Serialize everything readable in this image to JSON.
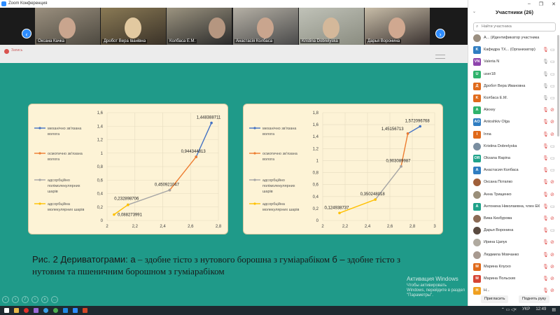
{
  "window": {
    "title": "Zoom Конференция"
  },
  "videos": [
    {
      "name": "Оксана Качка"
    },
    {
      "name": "Дробот Вера Іванівна"
    },
    {
      "name": "Колбаса Е.М."
    },
    {
      "name": "Анастасія Колбаса"
    },
    {
      "name": "Kristina Dobrelyska"
    },
    {
      "name": "Дарья Воронина"
    }
  ],
  "recording": {
    "label": "Запись"
  },
  "slide": {
    "caption_prefix": "Рис. 2  Дериватограми: а",
    "caption_a": " – здобне тісто з нутового борошна з гуміарабіком ",
    "caption_b_letter": "б –",
    "caption_b": " здобне тісто з нутовим та пшеничним борошном з гуміарабіком",
    "watermark_title": "Активация Windows",
    "watermark_sub": "Чтобы активировать Windows, перейдите в раздел \"Параметры\"."
  },
  "chart_data": [
    {
      "type": "line",
      "xlim": [
        2,
        2.8
      ],
      "ylim": [
        0,
        1.6
      ],
      "xticks": [
        "2",
        "2,2",
        "2,4",
        "2,6",
        "2,8"
      ],
      "yticks": [
        "0",
        "0,2",
        "0,4",
        "0,6",
        "0,8",
        "1",
        "1,2",
        "1,4",
        "1,6"
      ],
      "grid": true,
      "legend": "left",
      "series": [
        {
          "name": "механічно зв'язана волога",
          "color": "#4472c4",
          "points": [
            [
              2.64,
              0.944344813
            ],
            [
              2.75,
              1.448388711
            ]
          ]
        },
        {
          "name": "осмотично зв'язана волога",
          "color": "#ed7d31",
          "points": [
            [
              2.45,
              0.450921047
            ],
            [
              2.64,
              0.944344813
            ]
          ]
        },
        {
          "name": "адсорбційно полімолекулярних шарів",
          "color": "#a5a5a5",
          "points": [
            [
              2.15,
              0.232898706
            ],
            [
              2.45,
              0.450921047
            ]
          ]
        },
        {
          "name": "адсорбційна молекулярних шарів",
          "color": "#ffc000",
          "points": [
            [
              2.05,
              0.088273991
            ],
            [
              2.15,
              0.232898706
            ]
          ]
        }
      ],
      "labels": [
        {
          "x": 2.75,
          "y": 1.448388711,
          "text": "1,448388711"
        },
        {
          "x": 2.64,
          "y": 0.944344813,
          "text": "0,944344813"
        },
        {
          "x": 2.45,
          "y": 0.450921047,
          "text": "0,450921047"
        },
        {
          "x": 2.15,
          "y": 0.232898706,
          "text": "0,232898706"
        },
        {
          "x": 2.05,
          "y": 0.088273991,
          "text": "0,088273991"
        }
      ]
    },
    {
      "type": "line",
      "xlim": [
        2,
        3
      ],
      "ylim": [
        0,
        1.8
      ],
      "xticks": [
        "2",
        "2,2",
        "2,4",
        "2,6",
        "2,8",
        "3"
      ],
      "yticks": [
        "0",
        "0,2",
        "0,4",
        "0,6",
        "0,8",
        "1",
        "1,2",
        "1,4",
        "1,6",
        "1,8"
      ],
      "grid": true,
      "legend": "left",
      "series": [
        {
          "name": "механічно зв'язана волога",
          "color": "#4472c4",
          "points": [
            [
              2.76,
              1.45156713
            ],
            [
              2.87,
              1.572096768
            ]
          ]
        },
        {
          "name": "осмотично зв'язана волога",
          "color": "#ed7d31",
          "points": [
            [
              2.7,
              0.903089987
            ],
            [
              2.76,
              1.45156713
            ]
          ]
        },
        {
          "name": "адсорбційно полімолекулярних шарів",
          "color": "#a5a5a5",
          "points": [
            [
              2.47,
              0.350248018
            ],
            [
              2.7,
              0.903089987
            ]
          ]
        },
        {
          "name": "адсорбційна молекулярних шарів",
          "color": "#ffc000",
          "points": [
            [
              2.15,
              0.124938737
            ],
            [
              2.47,
              0.350248018
            ]
          ]
        }
      ],
      "labels": [
        {
          "x": 2.87,
          "y": 1.572096768,
          "text": "1,572096768"
        },
        {
          "x": 2.76,
          "y": 1.45156713,
          "text": "1,45156713"
        },
        {
          "x": 2.7,
          "y": 0.903089987,
          "text": "0,903089987"
        },
        {
          "x": 2.47,
          "y": 0.350248018,
          "text": "0,350248018"
        },
        {
          "x": 2.15,
          "y": 0.124938737,
          "text": "0,124938737"
        }
      ]
    }
  ],
  "panel": {
    "title": "Участники (26)",
    "search_placeholder": "Найти участника",
    "participants": [
      {
        "name": "А... (Идентификатор участника 435210)",
        "initials": "",
        "color": "#9b8f80",
        "mic": "",
        "cam": ""
      },
      {
        "name": "Кафедра ТХ... (Организатор)",
        "initials": "K",
        "color": "#2f7dc1",
        "mic": "muted",
        "cam": "on"
      },
      {
        "name": "Valeria N",
        "initials": "VN",
        "color": "#8e44ad",
        "mic": "on",
        "cam": "on"
      },
      {
        "name": "user18",
        "initials": "U",
        "color": "#2fb36c",
        "mic": "on",
        "cam": "on"
      },
      {
        "name": "Дробот Вера Ивановна",
        "initials": "Д",
        "color": "#e06a1b",
        "mic": "on",
        "cam": "on"
      },
      {
        "name": "Колбаса Е.М.",
        "initials": "K",
        "color": "#e06a1b",
        "mic": "on",
        "cam": "on"
      },
      {
        "name": "Alexey",
        "initials": "A",
        "color": "#2fb36c",
        "mic": "muted",
        "cam": "off"
      },
      {
        "name": "Antoshkiv Olga",
        "initials": "AO",
        "color": "#2f7dc1",
        "mic": "muted",
        "cam": "off"
      },
      {
        "name": "Inna",
        "initials": "I",
        "color": "#e06a1b",
        "mic": "muted",
        "cam": "off"
      },
      {
        "name": "Kristina Dobrelyska",
        "initials": "",
        "color": "#7a8ea0",
        "mic": "muted",
        "cam": "on"
      },
      {
        "name": "Oksana Rapina",
        "initials": "OR",
        "color": "#1fa28a",
        "mic": "muted",
        "cam": "on"
      },
      {
        "name": "Анастасия Колбаса",
        "initials": "A",
        "color": "#2f7dc1",
        "mic": "muted",
        "cam": "on"
      },
      {
        "name": "Оксана Потапко",
        "initials": "",
        "color": "#a0603a",
        "mic": "muted",
        "cam": "off"
      },
      {
        "name": "Анна Трищенко",
        "initials": "",
        "color": "#9a8f7a",
        "mic": "muted",
        "cam": "off"
      },
      {
        "name": "Антонина Николаевна, член ЕК",
        "initials": "A",
        "color": "#1fa28a",
        "mic": "muted",
        "cam": "on"
      },
      {
        "name": "Вика Кизбурова",
        "initials": "",
        "color": "#8b6a55",
        "mic": "muted",
        "cam": "off"
      },
      {
        "name": "Дарья Воронина",
        "initials": "",
        "color": "#5a4a40",
        "mic": "muted",
        "cam": "on"
      },
      {
        "name": "Ирина Цапук",
        "initials": "",
        "color": "#b0aaa0",
        "mic": "muted",
        "cam": "off"
      },
      {
        "name": "Людмила Мовчанко",
        "initials": "",
        "color": "#a89a90",
        "mic": "muted",
        "cam": "off"
      },
      {
        "name": "Марина Клуско",
        "initials": "M",
        "color": "#e06a1b",
        "mic": "muted",
        "cam": "off"
      },
      {
        "name": "Марина Польских",
        "initials": "M",
        "color": "#d64535",
        "mic": "muted",
        "cam": "off"
      },
      {
        "name": "Н...",
        "initials": "H",
        "color": "#f0a020",
        "mic": "muted",
        "cam": "off"
      }
    ],
    "invite_label": "Пригласить",
    "raise_hand_label": "Поднять руку"
  },
  "taskbar": {
    "lang": "УКР",
    "time": "12:49"
  }
}
